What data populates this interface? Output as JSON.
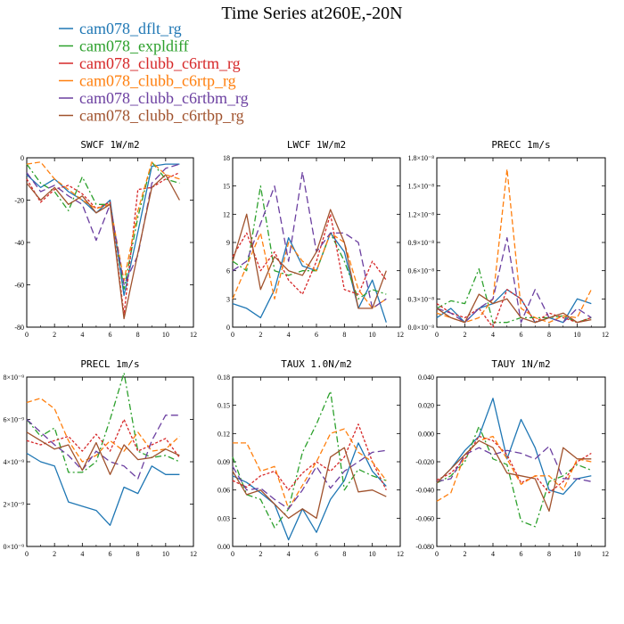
{
  "title": "Time Series at260E,-20N",
  "colors": {
    "blue": "#1f77b4",
    "green": "#2ca02c",
    "red": "#d62728",
    "orange": "#ff7f0e",
    "purple": "#6b3fa0",
    "brown": "#a0522d"
  },
  "legend": [
    {
      "label": "cam078_dflt_rg",
      "color": "#1f77b4"
    },
    {
      "label": "cam078_expldiff",
      "color": "#2ca02c"
    },
    {
      "label": "cam078_clubb_c6rtm_rg",
      "color": "#d62728"
    },
    {
      "label": "cam078_clubb_c6rtp_rg",
      "color": "#ff7f0e"
    },
    {
      "label": "cam078_clubb_c6rtbm_rg",
      "color": "#6b3fa0"
    },
    {
      "label": "cam078_clubb_c6rtbp_rg",
      "color": "#a0522d"
    }
  ],
  "chart_data": [
    {
      "type": "line",
      "title": "SWCF  1W/m2",
      "x": [
        0,
        1,
        2,
        3,
        4,
        5,
        6,
        7,
        8,
        9,
        10,
        11
      ],
      "xlim": [
        0,
        12
      ],
      "xticks": [
        0,
        2,
        4,
        6,
        8,
        10,
        12
      ],
      "ylim": [
        -80,
        0
      ],
      "yticks": [
        -80,
        -60,
        -40,
        -20,
        0
      ],
      "ytick_labels": [
        "-80",
        "-60",
        "-40",
        "-20",
        "0"
      ],
      "series": [
        {
          "values": [
            -8,
            -14,
            -10,
            -16,
            -20,
            -26,
            -20,
            -65,
            -35,
            -4,
            -3,
            -3
          ]
        },
        {
          "values": [
            -3,
            -12,
            -16,
            -25,
            -9,
            -22,
            -22,
            -62,
            -28,
            -2,
            -10,
            -12
          ]
        },
        {
          "values": [
            -10,
            -21,
            -15,
            -13,
            -17,
            -24,
            -21,
            -74,
            -15,
            -14,
            -10,
            -7
          ]
        },
        {
          "values": [
            -3,
            -2,
            -10,
            -15,
            -20,
            -24,
            -22,
            -58,
            -25,
            -2,
            -8,
            -10
          ]
        },
        {
          "values": [
            -7,
            -16,
            -13,
            -18,
            -22,
            -39,
            -22,
            -60,
            -46,
            -12,
            -5,
            -3
          ]
        },
        {
          "values": [
            -12,
            -20,
            -14,
            -22,
            -18,
            -26,
            -22,
            -76,
            -45,
            -14,
            -8,
            -20
          ]
        }
      ]
    },
    {
      "type": "line",
      "title": "LWCF  1W/m2",
      "x": [
        0,
        1,
        2,
        3,
        4,
        5,
        6,
        7,
        8,
        9,
        10,
        11
      ],
      "xlim": [
        0,
        12
      ],
      "xticks": [
        0,
        2,
        4,
        6,
        8,
        10,
        12
      ],
      "ylim": [
        0,
        18
      ],
      "yticks": [
        0,
        3,
        6,
        9,
        12,
        15,
        18
      ],
      "ytick_labels": [
        "0",
        "3",
        "6",
        "9",
        "12",
        "15",
        "18"
      ],
      "series": [
        {
          "values": [
            2.5,
            2,
            1,
            4,
            9.5,
            6.5,
            6,
            10,
            8,
            2,
            5,
            0.5
          ]
        },
        {
          "values": [
            7,
            6,
            15,
            6,
            5.5,
            6,
            6,
            10,
            7,
            3,
            4,
            3.5
          ]
        },
        {
          "values": [
            7.5,
            10,
            6,
            8,
            5,
            3.5,
            7,
            12,
            4,
            3.5,
            7,
            5
          ]
        },
        {
          "values": [
            3,
            6.5,
            10,
            3,
            9,
            7,
            6,
            10,
            9,
            4,
            2,
            3
          ]
        },
        {
          "values": [
            6,
            7,
            11,
            15,
            7,
            16.5,
            8,
            10,
            10,
            9,
            2,
            3
          ]
        },
        {
          "values": [
            7,
            12,
            4,
            7.5,
            6,
            5.5,
            8,
            12.5,
            9,
            2,
            2,
            6
          ]
        }
      ]
    },
    {
      "type": "line",
      "title": "PRECC   1m/s",
      "x": [
        0,
        1,
        2,
        3,
        4,
        5,
        6,
        7,
        8,
        9,
        10,
        11
      ],
      "xlim": [
        0,
        12
      ],
      "xticks": [
        0,
        2,
        4,
        6,
        8,
        10,
        12
      ],
      "ylim": [
        0,
        1.8e-08
      ],
      "yticks": [
        0,
        3e-09,
        6e-09,
        9e-09,
        1.2e-08,
        1.5e-08,
        1.8e-08
      ],
      "ytick_labels": [
        "0.0×10⁻⁸",
        "0.3×10⁻⁸",
        "0.6×10⁻⁸",
        "0.9×10⁻⁸",
        "1.2×10⁻⁸",
        "1.5×10⁻⁸",
        "1.8×10⁻⁸"
      ],
      "series": [
        {
          "values": [
            1e-09,
            2e-09,
            5e-10,
            2e-09,
            2.5e-09,
            4e-09,
            3e-09,
            5e-10,
            1e-09,
            5e-10,
            3e-09,
            2.5e-09
          ]
        },
        {
          "values": [
            2e-09,
            2.8e-09,
            2.5e-09,
            6.2e-09,
            5e-10,
            5e-10,
            1e-09,
            1e-09,
            1e-09,
            1.2e-09,
            5e-10,
            1e-09
          ]
        },
        {
          "values": [
            2.5e-09,
            1.5e-09,
            1e-09,
            2e-09,
            0.0,
            4e-09,
            3e-09,
            5e-10,
            1.5e-09,
            1e-09,
            5e-10,
            1e-09
          ]
        },
        {
          "values": [
            1.5e-09,
            1e-09,
            5e-10,
            1e-09,
            3e-09,
            1.68e-08,
            2e-09,
            1e-09,
            5e-10,
            1.2e-09,
            1e-09,
            4e-09
          ]
        },
        {
          "values": [
            2e-09,
            1.5e-09,
            5e-10,
            2e-09,
            3e-09,
            9.5e-09,
            5e-10,
            4e-09,
            1e-09,
            5e-10,
            2e-09,
            1e-09
          ]
        },
        {
          "values": [
            2e-09,
            1e-09,
            5e-10,
            3.5e-09,
            2.5e-09,
            3e-09,
            1e-09,
            5e-10,
            1e-09,
            1.5e-09,
            5e-10,
            8e-10
          ]
        }
      ]
    },
    {
      "type": "line",
      "title": "PRECL   1m/s",
      "x": [
        0,
        1,
        2,
        3,
        4,
        5,
        6,
        7,
        8,
        9,
        10,
        11
      ],
      "xlim": [
        0,
        12
      ],
      "xticks": [
        0,
        2,
        4,
        6,
        8,
        10,
        12
      ],
      "ylim": [
        0,
        8e-09
      ],
      "yticks": [
        0,
        2e-09,
        4e-09,
        6e-09,
        8e-09
      ],
      "ytick_labels": [
        "0×10⁻⁹",
        "2×10⁻⁹",
        "4×10⁻⁹",
        "6×10⁻⁹",
        "8×10⁻⁹"
      ],
      "series": [
        {
          "values": [
            4.4e-09,
            4e-09,
            3.8e-09,
            2.1e-09,
            1.9e-09,
            1.7e-09,
            1e-09,
            2.8e-09,
            2.5e-09,
            3.8e-09,
            3.4e-09,
            3.4e-09
          ]
        },
        {
          "values": [
            6e-09,
            5.2e-09,
            5.6e-09,
            3.5e-09,
            3.5e-09,
            4e-09,
            6e-09,
            8.2e-09,
            4.5e-09,
            4.2e-09,
            4.3e-09,
            4e-09
          ]
        },
        {
          "values": [
            5e-09,
            4.8e-09,
            5e-09,
            5.2e-09,
            4.5e-09,
            5.3e-09,
            4.5e-09,
            6e-09,
            4.5e-09,
            4.8e-09,
            5.1e-09,
            4.2e-09
          ]
        },
        {
          "values": [
            6.8e-09,
            7e-09,
            6.5e-09,
            5e-09,
            4e-09,
            4.3e-09,
            5e-09,
            4.5e-09,
            5.4e-09,
            4.5e-09,
            4.6e-09,
            5.2e-09
          ]
        },
        {
          "values": [
            6e-09,
            5.4e-09,
            4.8e-09,
            4.3e-09,
            3.6e-09,
            4.5e-09,
            4e-09,
            3.8e-09,
            3.2e-09,
            5e-09,
            6.2e-09,
            6.2e-09
          ]
        },
        {
          "values": [
            5.4e-09,
            5e-09,
            4.6e-09,
            4.8e-09,
            3.6e-09,
            4.9e-09,
            3.4e-09,
            4.8e-09,
            4.1e-09,
            4.2e-09,
            4.6e-09,
            4.3e-09
          ]
        }
      ]
    },
    {
      "type": "line",
      "title": "TAUX  1.0N/m2",
      "x": [
        0,
        1,
        2,
        3,
        4,
        5,
        6,
        7,
        8,
        9,
        10,
        11
      ],
      "xlim": [
        0,
        12
      ],
      "xticks": [
        0,
        2,
        4,
        6,
        8,
        10,
        12
      ],
      "ylim": [
        0,
        0.18
      ],
      "yticks": [
        0,
        0.03,
        0.06,
        0.09,
        0.12,
        0.15,
        0.18
      ],
      "ytick_labels": [
        "0.00",
        "0.03",
        "0.06",
        "0.09",
        "0.12",
        "0.15",
        "0.18"
      ],
      "series": [
        {
          "values": [
            0.075,
            0.068,
            0.057,
            0.045,
            0.007,
            0.04,
            0.015,
            0.05,
            0.07,
            0.11,
            0.08,
            0.064
          ]
        },
        {
          "values": [
            0.095,
            0.055,
            0.05,
            0.02,
            0.04,
            0.1,
            0.13,
            0.165,
            0.06,
            0.082,
            0.075,
            0.07
          ]
        },
        {
          "values": [
            0.07,
            0.063,
            0.075,
            0.08,
            0.06,
            0.078,
            0.09,
            0.08,
            0.095,
            0.13,
            0.09,
            0.06
          ]
        },
        {
          "values": [
            0.11,
            0.11,
            0.08,
            0.085,
            0.04,
            0.065,
            0.09,
            0.12,
            0.125,
            0.1,
            0.09,
            0.07
          ]
        },
        {
          "values": [
            0.085,
            0.06,
            0.062,
            0.05,
            0.04,
            0.06,
            0.085,
            0.062,
            0.08,
            0.09,
            0.1,
            0.102
          ]
        },
        {
          "values": [
            0.08,
            0.055,
            0.06,
            0.045,
            0.03,
            0.04,
            0.03,
            0.095,
            0.105,
            0.058,
            0.06,
            0.053
          ]
        }
      ]
    },
    {
      "type": "line",
      "title": "TAUY  1N/m2",
      "x": [
        0,
        1,
        2,
        3,
        4,
        5,
        6,
        7,
        8,
        9,
        10,
        11
      ],
      "xlim": [
        0,
        12
      ],
      "xticks": [
        0,
        2,
        4,
        6,
        8,
        10,
        12
      ],
      "ylim": [
        -0.08,
        0.04
      ],
      "yticks": [
        -0.08,
        -0.06,
        -0.04,
        -0.02,
        0,
        0.02,
        0.04
      ],
      "ytick_labels": [
        "-0.080",
        "-0.060",
        "-0.040",
        "-0.020",
        "0.000",
        "0.020",
        "0.040"
      ],
      "series": [
        {
          "values": [
            -0.035,
            -0.025,
            -0.012,
            -0.002,
            0.025,
            -0.018,
            0.01,
            -0.01,
            -0.04,
            -0.043,
            -0.032,
            -0.03
          ]
        },
        {
          "values": [
            -0.035,
            -0.03,
            -0.02,
            0.005,
            -0.018,
            -0.022,
            -0.062,
            -0.066,
            -0.034,
            -0.03,
            -0.022,
            -0.026
          ]
        },
        {
          "values": [
            -0.033,
            -0.028,
            -0.018,
            -0.002,
            -0.005,
            -0.015,
            -0.035,
            -0.03,
            -0.042,
            -0.034,
            -0.02,
            -0.014
          ]
        },
        {
          "values": [
            -0.048,
            -0.042,
            -0.015,
            -0.005,
            -0.002,
            -0.018,
            -0.036,
            -0.03,
            -0.03,
            -0.04,
            -0.018,
            -0.02
          ]
        },
        {
          "values": [
            -0.034,
            -0.032,
            -0.015,
            -0.01,
            -0.015,
            -0.012,
            -0.014,
            -0.018,
            -0.009,
            -0.032,
            -0.032,
            -0.034
          ]
        },
        {
          "values": [
            -0.035,
            -0.025,
            -0.015,
            -0.005,
            -0.01,
            -0.028,
            -0.03,
            -0.032,
            -0.055,
            -0.01,
            -0.018,
            -0.018
          ]
        }
      ]
    }
  ]
}
